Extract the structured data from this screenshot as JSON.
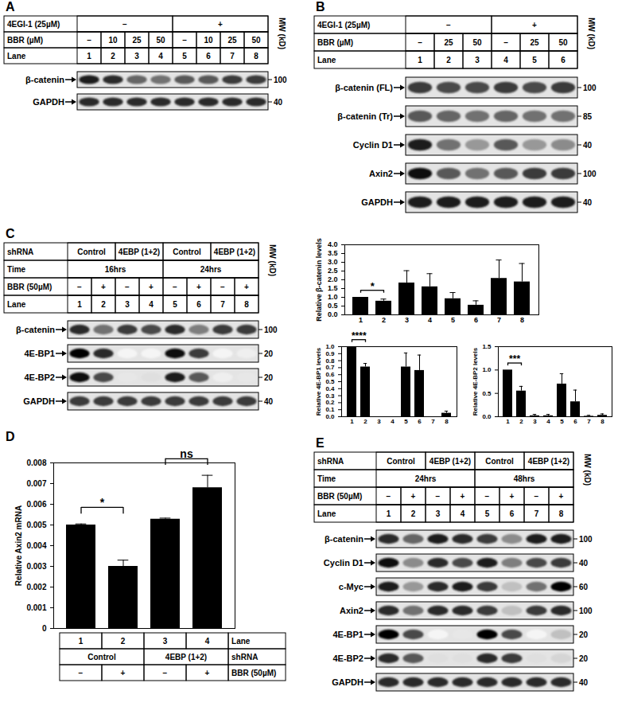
{
  "blots": [
    {
      "panel": "A",
      "mw_label": "MW (kD)",
      "header": [
        {
          "label": "4EGI-1 (25µM)",
          "cells": [
            {
              "text": "−",
              "span": 4
            },
            {
              "text": "+",
              "span": 4
            }
          ]
        },
        {
          "label": "BBR (µM)",
          "cells": [
            {
              "text": "–",
              "span": 1
            },
            {
              "text": "10",
              "span": 1
            },
            {
              "text": "25",
              "span": 1
            },
            {
              "text": "50",
              "span": 1
            },
            {
              "text": "–",
              "span": 1
            },
            {
              "text": "10",
              "span": 1
            },
            {
              "text": "25",
              "span": 1
            },
            {
              "text": "50",
              "span": 1
            }
          ]
        },
        {
          "label": "Lane",
          "cells": [
            {
              "text": "1",
              "span": 1
            },
            {
              "text": "2",
              "span": 1
            },
            {
              "text": "3",
              "span": 1
            },
            {
              "text": "4",
              "span": 1
            },
            {
              "text": "5",
              "span": 1
            },
            {
              "text": "6",
              "span": 1
            },
            {
              "text": "7",
              "span": 1
            },
            {
              "text": "8",
              "span": 1
            }
          ]
        }
      ],
      "bands": [
        {
          "name": "β-catenin",
          "mw": "100",
          "intensity": [
            0.9,
            0.85,
            0.65,
            0.6,
            0.7,
            0.7,
            0.8,
            0.8
          ]
        },
        {
          "name": "GAPDH",
          "mw": "40",
          "intensity": [
            0.85,
            0.85,
            0.85,
            0.85,
            0.85,
            0.85,
            0.85,
            0.85
          ]
        }
      ]
    },
    {
      "panel": "B",
      "mw_label": "MW (kD)",
      "header": [
        {
          "label": "4EGI-1 (25µM)",
          "cells": [
            {
              "text": "−",
              "span": 3
            },
            {
              "text": "+",
              "span": 3
            }
          ]
        },
        {
          "label": "BBR (µM)",
          "cells": [
            {
              "text": "–",
              "span": 1
            },
            {
              "text": "25",
              "span": 1
            },
            {
              "text": "50",
              "span": 1
            },
            {
              "text": "–",
              "span": 1
            },
            {
              "text": "25",
              "span": 1
            },
            {
              "text": "50",
              "span": 1
            }
          ]
        },
        {
          "label": "Lane",
          "cells": [
            {
              "text": "1",
              "span": 1
            },
            {
              "text": "2",
              "span": 1
            },
            {
              "text": "3",
              "span": 1
            },
            {
              "text": "4",
              "span": 1
            },
            {
              "text": "5",
              "span": 1
            },
            {
              "text": "6",
              "span": 1
            }
          ]
        }
      ],
      "bands": [
        {
          "name": "β-catenin (FL)",
          "mw": "100",
          "intensity": [
            0.8,
            0.75,
            0.75,
            0.8,
            0.75,
            0.8
          ]
        },
        {
          "name": "β-catenin (Tr)",
          "mw": "85",
          "intensity": [
            0.7,
            0.65,
            0.6,
            0.65,
            0.6,
            0.6
          ]
        },
        {
          "name": "Cyclin D1",
          "mw": "40",
          "intensity": [
            0.9,
            0.6,
            0.45,
            0.7,
            0.45,
            0.5
          ]
        },
        {
          "name": "Axin2",
          "mw": "100",
          "intensity": [
            0.95,
            0.7,
            0.6,
            0.7,
            0.8,
            0.8
          ]
        },
        {
          "name": "GAPDH",
          "mw": "40",
          "intensity": [
            0.9,
            0.9,
            0.9,
            0.9,
            0.9,
            0.9
          ]
        }
      ]
    },
    {
      "panel": "C",
      "mw_label": "MW (kD)",
      "header": [
        {
          "label": "shRNA",
          "cells": [
            {
              "text": "Control",
              "span": 2
            },
            {
              "text": "4EBP (1+2)",
              "span": 2
            },
            {
              "text": "Control",
              "span": 2
            },
            {
              "text": "4EBP (1+2)",
              "span": 2
            }
          ]
        },
        {
          "label": "Time",
          "cells": [
            {
              "text": "16hrs",
              "span": 4
            },
            {
              "text": "24hrs",
              "span": 4
            }
          ]
        },
        {
          "label": "BBR (50µM)",
          "cells": [
            {
              "text": "−",
              "span": 1
            },
            {
              "text": "+",
              "span": 1
            },
            {
              "text": "−",
              "span": 1
            },
            {
              "text": "+",
              "span": 1
            },
            {
              "text": "−",
              "span": 1
            },
            {
              "text": "+",
              "span": 1
            },
            {
              "text": "−",
              "span": 1
            },
            {
              "text": "+",
              "span": 1
            }
          ]
        },
        {
          "label": "Lane",
          "cells": [
            {
              "text": "1",
              "span": 1
            },
            {
              "text": "2",
              "span": 1
            },
            {
              "text": "3",
              "span": 1
            },
            {
              "text": "4",
              "span": 1
            },
            {
              "text": "5",
              "span": 1
            },
            {
              "text": "6",
              "span": 1
            },
            {
              "text": "7",
              "span": 1
            },
            {
              "text": "8",
              "span": 1
            }
          ]
        }
      ],
      "bands": [
        {
          "name": "β-catenin",
          "mw": "100",
          "intensity": [
            0.85,
            0.6,
            0.8,
            0.75,
            0.85,
            0.55,
            0.8,
            0.8
          ]
        },
        {
          "name": "4E-BP1",
          "mw": "20",
          "intensity": [
            1,
            0.85,
            0,
            0,
            0.95,
            0.8,
            0,
            0.05
          ]
        },
        {
          "name": "4E-BP2",
          "mw": "20",
          "intensity": [
            0.95,
            0.75,
            0.1,
            0.15,
            0.9,
            0.7,
            0.05,
            0.1
          ]
        },
        {
          "name": "GAPDH",
          "mw": "40",
          "intensity": [
            0.8,
            0.8,
            0.8,
            0.8,
            0.8,
            0.8,
            0.8,
            0.8
          ]
        }
      ]
    },
    {
      "panel": "E",
      "mw_label": "MW (kD)",
      "header": [
        {
          "label": "shRNA",
          "cells": [
            {
              "text": "Control",
              "span": 2
            },
            {
              "text": "4EBP (1+2)",
              "span": 2
            },
            {
              "text": "Control",
              "span": 2
            },
            {
              "text": "4EBP (1+2)",
              "span": 2
            }
          ]
        },
        {
          "label": "Time",
          "cells": [
            {
              "text": "24hrs",
              "span": 4
            },
            {
              "text": "48hrs",
              "span": 4
            }
          ]
        },
        {
          "label": "BBR (50µM)",
          "cells": [
            {
              "text": "−",
              "span": 1
            },
            {
              "text": "+",
              "span": 1
            },
            {
              "text": "−",
              "span": 1
            },
            {
              "text": "+",
              "span": 1
            },
            {
              "text": "−",
              "span": 1
            },
            {
              "text": "+",
              "span": 1
            },
            {
              "text": "−",
              "span": 1
            },
            {
              "text": "+",
              "span": 1
            }
          ]
        },
        {
          "label": "Lane",
          "cells": [
            {
              "text": "1",
              "span": 1
            },
            {
              "text": "2",
              "span": 1
            },
            {
              "text": "3",
              "span": 1
            },
            {
              "text": "4",
              "span": 1
            },
            {
              "text": "5",
              "span": 1
            },
            {
              "text": "6",
              "span": 1
            },
            {
              "text": "7",
              "span": 1
            },
            {
              "text": "8",
              "span": 1
            }
          ]
        }
      ],
      "bands": [
        {
          "name": "β-catenin",
          "mw": "100",
          "intensity": [
            0.85,
            0.65,
            0.9,
            0.85,
            0.8,
            0.5,
            0.9,
            0.9
          ]
        },
        {
          "name": "Cyclin D1",
          "mw": "40",
          "intensity": [
            0.95,
            0.5,
            0.85,
            0.75,
            0.9,
            0.55,
            0.75,
            0.8
          ]
        },
        {
          "name": "c-Myc",
          "mw": "60",
          "intensity": [
            0.9,
            0.45,
            0.85,
            0.9,
            0.8,
            0.3,
            0.6,
            1
          ]
        },
        {
          "name": "Axin2",
          "mw": "100",
          "intensity": [
            0.85,
            0.6,
            0.85,
            0.85,
            0.8,
            0.3,
            0.8,
            0.85
          ]
        },
        {
          "name": "4E-BP1",
          "mw": "20",
          "intensity": [
            1,
            0.75,
            0,
            0.1,
            1,
            0.75,
            0,
            0.3
          ]
        },
        {
          "name": "4E-BP2",
          "mw": "20",
          "intensity": [
            0.85,
            0.7,
            0.15,
            0.15,
            0.85,
            0.8,
            0.15,
            0.2
          ]
        },
        {
          "name": "GAPDH",
          "mw": "40",
          "intensity": [
            0.85,
            0.85,
            0.85,
            0.85,
            0.85,
            0.85,
            0.85,
            0.85
          ]
        }
      ]
    }
  ],
  "chart_data": [
    {
      "type": "bar",
      "ylabel": "Relative β-catenin levels",
      "color": "#000000",
      "categories": [
        "1",
        "2",
        "3",
        "4",
        "5",
        "6",
        "7",
        "8"
      ],
      "values": [
        1.0,
        0.78,
        1.82,
        1.6,
        0.92,
        0.55,
        2.08,
        1.88
      ],
      "errors": [
        0,
        0.12,
        0.7,
        0.75,
        0.35,
        0.25,
        1.05,
        1.05
      ],
      "ylim": [
        0,
        4
      ],
      "yticks": [
        {
          "value": 0,
          "label": "0.0"
        },
        {
          "value": 0.5,
          "label": "0.5"
        },
        {
          "value": 1,
          "label": "1.0"
        },
        {
          "value": 1.5,
          "label": "1.5"
        },
        {
          "value": 2,
          "label": "2.0"
        },
        {
          "value": 2.5,
          "label": "2.5"
        },
        {
          "value": 3,
          "label": "3.0"
        },
        {
          "value": 3.5,
          "label": "3.5"
        },
        {
          "value": 4,
          "label": "4.0"
        }
      ],
      "annotations": [
        {
          "text": "*",
          "between": [
            "1",
            "2"
          ]
        }
      ]
    },
    {
      "type": "bar",
      "ylabel": "Relative 4E-BP1 levels",
      "color": "#000000",
      "categories": [
        "1",
        "2",
        "3",
        "4",
        "5",
        "6",
        "7",
        "8"
      ],
      "values": [
        1.0,
        0.71,
        0,
        0,
        0.71,
        0.66,
        0,
        0.05
      ],
      "errors": [
        0,
        0.05,
        0,
        0,
        0.2,
        0.22,
        0,
        0.03
      ],
      "ylim": [
        0,
        1
      ],
      "yticks": [
        {
          "value": 0,
          "label": "0.0"
        },
        {
          "value": 0.1,
          "label": "0.1"
        },
        {
          "value": 0.2,
          "label": "0.2"
        },
        {
          "value": 0.3,
          "label": "0.3"
        },
        {
          "value": 0.4,
          "label": "0.4"
        },
        {
          "value": 0.5,
          "label": "0.5"
        },
        {
          "value": 0.6,
          "label": "0.6"
        },
        {
          "value": 0.7,
          "label": "0.7"
        },
        {
          "value": 0.8,
          "label": "0.8"
        },
        {
          "value": 0.9,
          "label": "0.9"
        },
        {
          "value": 1,
          "label": "1.0"
        }
      ],
      "annotations": [
        {
          "text": "****",
          "between": [
            "1",
            "2"
          ]
        }
      ]
    },
    {
      "type": "bar",
      "ylabel": "Relative 4E-BP2 levels",
      "color": "#000000",
      "categories": [
        "1",
        "2",
        "3",
        "4",
        "5",
        "6",
        "7",
        "8"
      ],
      "values": [
        1.0,
        0.55,
        0.02,
        0.02,
        0.7,
        0.32,
        0.01,
        0.03
      ],
      "errors": [
        0,
        0.1,
        0.03,
        0.03,
        0.22,
        0.25,
        0.02,
        0.03
      ],
      "ylim": [
        0,
        1.5
      ],
      "yticks": [
        {
          "value": 0,
          "label": "0.0"
        },
        {
          "value": 0.5,
          "label": "0.5"
        },
        {
          "value": 1,
          "label": "1.0"
        },
        {
          "value": 1.5,
          "label": "1.5"
        }
      ],
      "annotations": [
        {
          "text": "***",
          "between": [
            "1",
            "2"
          ]
        }
      ]
    },
    {
      "panel": "D",
      "type": "bar",
      "ylabel": "Relative Axin2 mRNA",
      "color": "#000000",
      "categories": [
        "1",
        "2",
        "3",
        "4"
      ],
      "values": [
        0.005,
        0.003,
        0.00528,
        0.0068
      ],
      "errors": [
        5e-05,
        0.0003,
        5e-05,
        0.0006
      ],
      "ylim": [
        0,
        0.008
      ],
      "yticks": [
        0,
        0.001,
        0.002,
        0.003,
        0.004,
        0.005,
        0.006,
        0.007,
        0.008
      ],
      "tick_labels": "y",
      "annotations": [
        {
          "text": "*",
          "between": [
            "1",
            "2"
          ]
        },
        {
          "text": "ns",
          "between": [
            "3",
            "4"
          ]
        }
      ],
      "table": {
        "category_label": "Lane",
        "rows": [
          {
            "label": "shRNA",
            "cells": [
              {
                "text": "Control",
                "span": 2
              },
              {
                "text": "4EBP (1+2)",
                "span": 2
              }
            ]
          },
          {
            "label": "BBR (50µM)",
            "cells": [
              {
                "text": "−",
                "span": 1
              },
              {
                "text": "+",
                "span": 1
              },
              {
                "text": "−",
                "span": 1
              },
              {
                "text": "+",
                "span": 1
              }
            ]
          }
        ]
      }
    }
  ]
}
